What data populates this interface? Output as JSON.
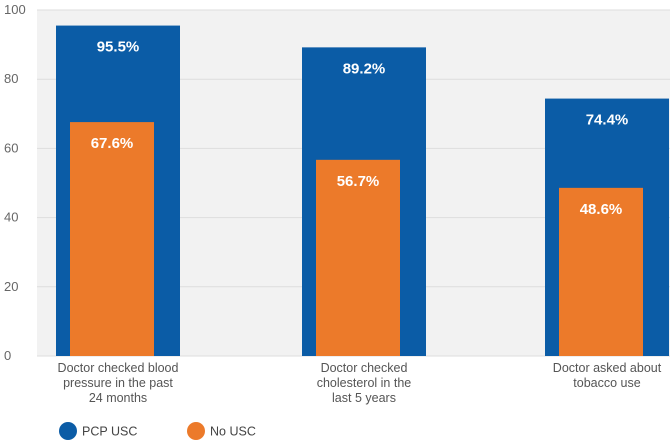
{
  "chart_data": {
    "type": "bar",
    "categories": [
      [
        "Doctor checked blood",
        "pressure in the past",
        "24 months"
      ],
      [
        "Doctor checked",
        "cholesterol in the",
        "last 5 years"
      ],
      [
        "Doctor asked about",
        "tobacco use"
      ]
    ],
    "series": [
      {
        "name": "PCP USC",
        "color": "#0b5ca6",
        "values": [
          95.5,
          89.2,
          74.4
        ],
        "labels": [
          "95.5%",
          "89.2%",
          "74.4%"
        ]
      },
      {
        "name": "No USC",
        "color": "#ec7a2a",
        "values": [
          67.6,
          56.7,
          48.6
        ],
        "labels": [
          "67.6%",
          "56.7%",
          "48.6%"
        ]
      }
    ],
    "ylim": [
      0,
      100
    ],
    "yticks": [
      0,
      20,
      40,
      60,
      80,
      100
    ],
    "grid": true,
    "legend_position": "bottom-left",
    "grid_color": "#dddddd",
    "background": "#f2f2f2"
  }
}
